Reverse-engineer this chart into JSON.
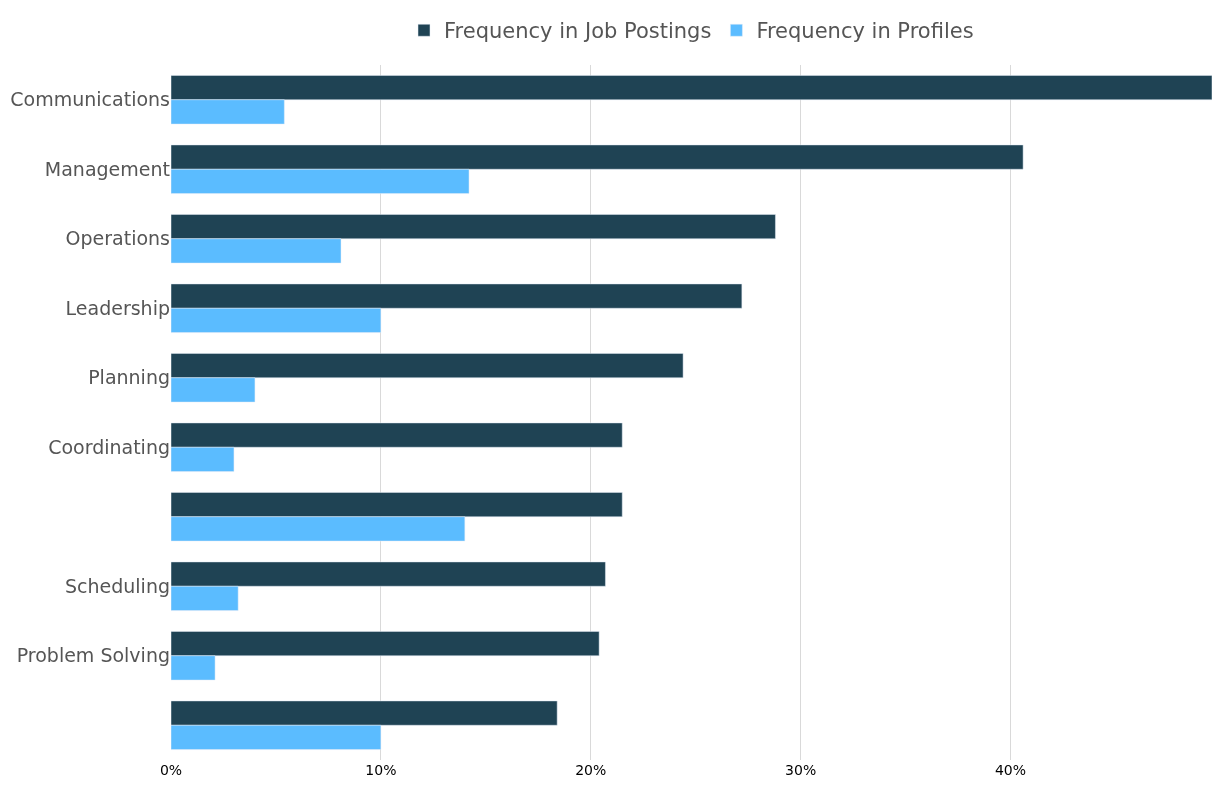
{
  "chart_data": {
    "type": "bar",
    "orientation": "horizontal",
    "categories": [
      "Communications",
      "Management",
      "Operations",
      "Leadership",
      "Planning",
      "Coordinating",
      null,
      "Scheduling",
      "Problem Solving",
      null
    ],
    "series": [
      {
        "name": "Frequency in Job Postings",
        "color": "#1f4354",
        "values": [
          49.6,
          40.6,
          28.8,
          27.2,
          24.4,
          21.5,
          21.5,
          20.7,
          20.4,
          18.4
        ]
      },
      {
        "name": "Frequency in Profiles",
        "color": "#5bbcff",
        "values": [
          5.4,
          14.2,
          8.1,
          10.0,
          4.0,
          3.0,
          14.0,
          3.2,
          2.1,
          10.0
        ]
      }
    ],
    "xlim": [
      0,
      49.6
    ],
    "xticks": [
      {
        "value": 0,
        "label": "0%"
      },
      {
        "value": 10,
        "label": "10%"
      },
      {
        "value": 20,
        "label": "20%"
      },
      {
        "value": 30,
        "label": "30%"
      },
      {
        "value": 40,
        "label": "40%"
      }
    ],
    "grid": "x",
    "legend": "top"
  }
}
